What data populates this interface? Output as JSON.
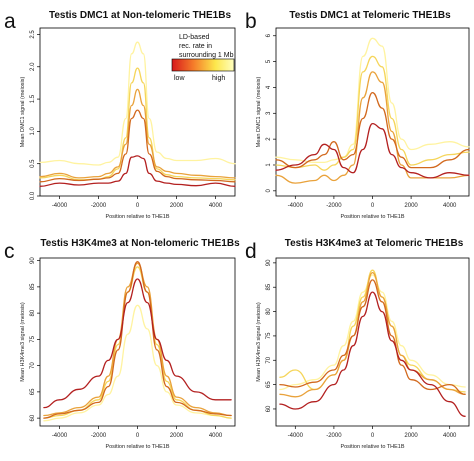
{
  "colors": {
    "series": [
      "#b32020",
      "#d2691e",
      "#e9a23b",
      "#f5d55a",
      "#fff3a0"
    ],
    "gradient": [
      "#d7191c",
      "#f57d2a",
      "#fde74c",
      "#ffffbf"
    ]
  },
  "legend": {
    "title_lines": [
      "LD-based",
      "rec. rate in",
      "surrounding 1 Mb"
    ],
    "low_label": "low",
    "high_label": "high"
  },
  "chart_data": [
    {
      "letter": "a",
      "type": "line",
      "title": "Testis DMC1 at Non-telomeric THE1Bs",
      "xlabel": "Position relative to THE1B",
      "ylabel": "Mean DMC1 signal (meiosis)",
      "xlim": [
        -5000,
        5000
      ],
      "ylim": [
        0,
        2.6
      ],
      "xticks": [
        -4000,
        -2000,
        0,
        2000,
        4000
      ],
      "yticks": [
        0.0,
        0.5,
        1.0,
        1.5,
        2.0,
        2.5
      ],
      "ytick_labels": [
        "0.0",
        "0.5",
        "1.0",
        "1.5",
        "2.0",
        "2.5"
      ],
      "x": [
        -5000,
        -4000,
        -3000,
        -2000,
        -1500,
        -1000,
        -600,
        -300,
        0,
        300,
        600,
        1000,
        1500,
        2000,
        3000,
        4000,
        5000
      ],
      "series": [
        {
          "values": [
            0.15,
            0.2,
            0.17,
            0.2,
            0.2,
            0.23,
            0.35,
            0.6,
            0.62,
            0.58,
            0.35,
            0.23,
            0.2,
            0.18,
            0.16,
            0.2,
            0.15
          ]
        },
        {
          "values": [
            0.22,
            0.27,
            0.24,
            0.26,
            0.28,
            0.35,
            0.65,
            1.2,
            1.33,
            1.2,
            0.65,
            0.38,
            0.3,
            0.27,
            0.25,
            0.24,
            0.22
          ]
        },
        {
          "values": [
            0.3,
            0.35,
            0.28,
            0.3,
            0.35,
            0.45,
            0.8,
            1.4,
            1.65,
            1.4,
            0.8,
            0.45,
            0.38,
            0.35,
            0.32,
            0.3,
            0.28
          ]
        },
        {
          "values": [
            0.28,
            0.32,
            0.25,
            0.26,
            0.3,
            0.42,
            0.9,
            1.75,
            1.98,
            1.75,
            0.9,
            0.42,
            0.33,
            0.3,
            0.28,
            0.27,
            0.25
          ]
        },
        {
          "values": [
            0.52,
            0.55,
            0.5,
            0.48,
            0.52,
            0.6,
            1.2,
            2.2,
            2.38,
            2.2,
            1.2,
            0.68,
            0.58,
            0.55,
            0.55,
            0.58,
            0.5
          ]
        }
      ]
    },
    {
      "letter": "b",
      "type": "line",
      "title": "Testis DMC1 at Telomeric THE1Bs",
      "xlabel": "Position relative to THE1B",
      "ylabel": "Mean DMC1 signal (meiosis)",
      "xlim": [
        -5000,
        5000
      ],
      "ylim": [
        -0.2,
        6.3
      ],
      "xticks": [
        -4000,
        -2000,
        0,
        2000,
        4000
      ],
      "yticks": [
        0,
        1,
        2,
        3,
        4,
        5,
        6
      ],
      "ytick_labels": [
        "0",
        "1",
        "2",
        "3",
        "4",
        "5",
        "6"
      ],
      "x": [
        -5000,
        -4000,
        -3000,
        -2500,
        -2000,
        -1500,
        -1000,
        -500,
        0,
        500,
        1000,
        1500,
        2000,
        3000,
        4000,
        5000
      ],
      "series": [
        {
          "values": [
            0.8,
            1.0,
            1.4,
            1.8,
            1.6,
            0.9,
            0.7,
            1.6,
            2.6,
            2.4,
            1.4,
            0.9,
            0.7,
            0.5,
            0.7,
            0.6
          ]
        },
        {
          "values": [
            1.2,
            0.9,
            1.2,
            1.4,
            1.9,
            1.2,
            1.4,
            2.8,
            3.8,
            3.2,
            2.0,
            1.3,
            0.9,
            0.9,
            1.2,
            1.6
          ]
        },
        {
          "values": [
            0.6,
            0.3,
            0.4,
            0.6,
            0.4,
            0.6,
            1.0,
            3.6,
            4.6,
            4.2,
            2.3,
            1.0,
            0.5,
            0.5,
            0.5,
            0.6
          ]
        },
        {
          "values": [
            1.0,
            0.9,
            1.0,
            0.8,
            1.0,
            1.3,
            1.6,
            4.6,
            5.2,
            4.8,
            2.8,
            1.6,
            1.0,
            1.2,
            1.4,
            1.5
          ]
        },
        {
          "values": [
            1.3,
            1.2,
            1.1,
            1.1,
            1.2,
            1.3,
            1.8,
            5.2,
            5.9,
            5.6,
            3.4,
            2.0,
            1.6,
            1.8,
            1.9,
            1.7
          ]
        }
      ]
    },
    {
      "letter": "c",
      "type": "line",
      "title": "Testis H3K4me3 at Non-telomeric THE1Bs",
      "xlabel": "Position relative to THE1B",
      "ylabel": "Mean H3K4me3 signal (meiosis)",
      "xlim": [
        -5000,
        5000
      ],
      "ylim": [
        58.5,
        90.5
      ],
      "xticks": [
        -4000,
        -2000,
        0,
        2000,
        4000
      ],
      "yticks": [
        60,
        65,
        70,
        75,
        80,
        85,
        90
      ],
      "ytick_labels": [
        "60",
        "65",
        "70",
        "75",
        "80",
        "85",
        "90"
      ],
      "x": [
        -4800,
        -4000,
        -3000,
        -2000,
        -1500,
        -1000,
        -500,
        0,
        500,
        1000,
        1500,
        2000,
        3000,
        4000,
        4800
      ],
      "series": [
        {
          "values": [
            62,
            63.5,
            65.5,
            68,
            71,
            75,
            82,
            86.5,
            82,
            75,
            71,
            68,
            65,
            63.5,
            63.5
          ]
        },
        {
          "values": [
            60,
            60.8,
            61.5,
            63,
            66,
            73,
            84,
            89.8,
            84,
            73,
            66,
            63,
            61.5,
            60.8,
            60.5
          ]
        },
        {
          "values": [
            60.5,
            61,
            62,
            64,
            68,
            75,
            85,
            89.5,
            85,
            75,
            68,
            64,
            62,
            61,
            60.5
          ]
        },
        {
          "values": [
            60,
            60.5,
            61.5,
            63.5,
            67,
            74,
            84,
            88.8,
            84,
            74,
            67,
            63.5,
            61.5,
            60.5,
            60
          ]
        },
        {
          "values": [
            59.5,
            60,
            61,
            62.5,
            64.5,
            68,
            76,
            81.5,
            77,
            70,
            65,
            62.5,
            61,
            60.5,
            60
          ]
        }
      ]
    },
    {
      "letter": "d",
      "type": "line",
      "title": "Testis H3K4me3 at Telomeric THE1Bs",
      "xlabel": "Position relative to THE1B",
      "ylabel": "Mean H3K4me3 signal (meiosis)",
      "xlim": [
        -5000,
        5000
      ],
      "ylim": [
        56.5,
        91
      ],
      "xticks": [
        -4000,
        -2000,
        0,
        2000,
        4000
      ],
      "yticks": [
        60,
        65,
        70,
        75,
        80,
        85,
        90
      ],
      "ytick_labels": [
        "60",
        "65",
        "70",
        "75",
        "80",
        "85",
        "90"
      ],
      "x": [
        -4800,
        -4000,
        -3000,
        -2000,
        -1500,
        -1000,
        -500,
        0,
        500,
        1000,
        1500,
        2000,
        3000,
        4000,
        4800
      ],
      "series": [
        {
          "values": [
            61,
            60,
            61.5,
            65,
            68,
            73,
            79,
            84,
            80,
            74,
            70,
            68,
            65,
            61.5,
            58.5
          ]
        },
        {
          "values": [
            65,
            64.5,
            65.5,
            68,
            71,
            75,
            81,
            86.5,
            82,
            75,
            69,
            66,
            64,
            65,
            63
          ]
        },
        {
          "values": [
            63,
            62.5,
            64,
            67,
            70,
            75,
            82,
            88,
            83,
            77,
            71,
            68,
            66,
            64,
            63
          ]
        },
        {
          "values": [
            66.5,
            68,
            64,
            67,
            70,
            77,
            83,
            88.5,
            83,
            77,
            71,
            69,
            66,
            64,
            63.5
          ]
        },
        {
          "values": [
            64,
            65,
            66,
            69,
            73,
            78,
            84,
            87.5,
            84,
            78,
            73,
            70,
            67,
            65,
            64.5
          ]
        }
      ]
    }
  ]
}
